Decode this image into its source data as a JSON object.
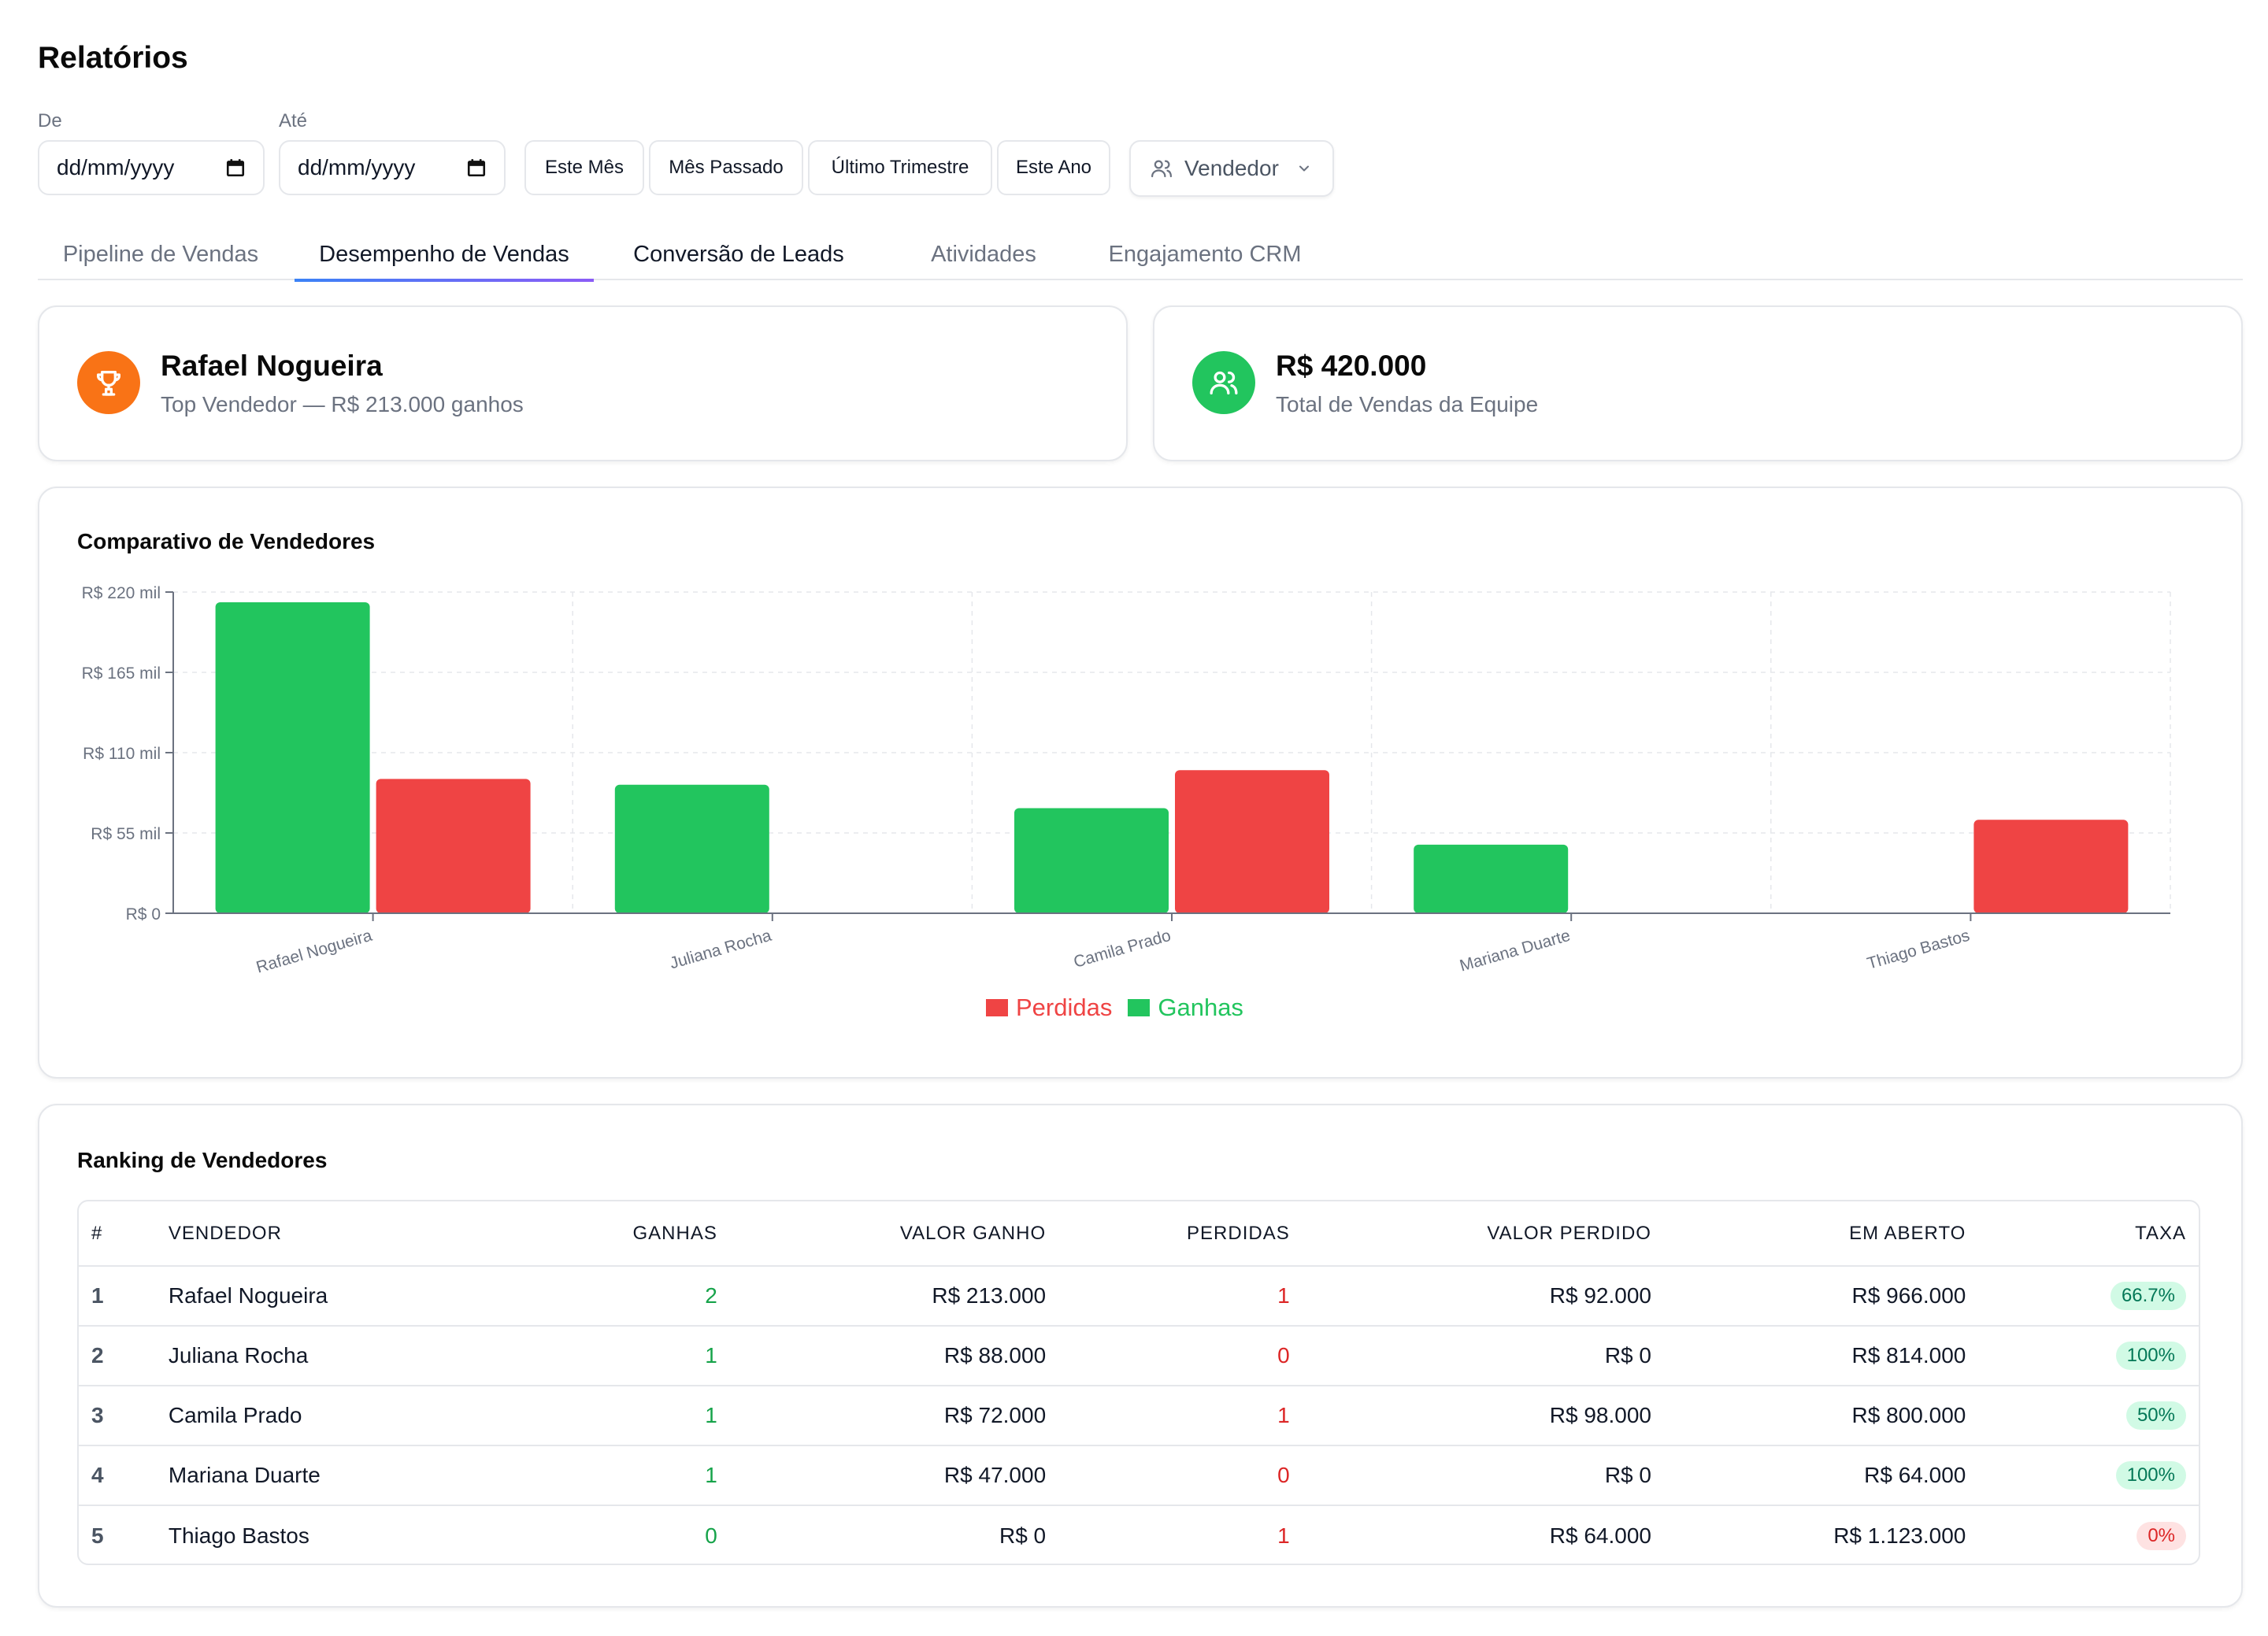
{
  "page": {
    "title": "Relatórios"
  },
  "filters": {
    "from_label": "De",
    "to_label": "Até",
    "from_placeholder": "dd/mm/yyyy",
    "to_placeholder": "dd/mm/yyyy",
    "presets": [
      "Este Mês",
      "Mês Passado",
      "Último Trimestre",
      "Este Ano"
    ],
    "seller_select": "Vendedor"
  },
  "tabs": [
    {
      "label": "Pipeline de Vendas"
    },
    {
      "label": "Desempenho de Vendas"
    },
    {
      "label": "Conversão de Leads"
    },
    {
      "label": "Atividades"
    },
    {
      "label": "Engajamento CRM"
    }
  ],
  "active_tab": "Desempenho de Vendas",
  "top_seller": {
    "name": "Rafael Nogueira",
    "subtitle": "Top Vendedor — R$ 213.000 ganhos",
    "icon": "trophy-icon",
    "color": "#f97316"
  },
  "team_total": {
    "value": "R$ 420.000",
    "subtitle": "Total de Vendas da Equipe",
    "icon": "users-icon",
    "color": "#22c55e"
  },
  "chart_section": {
    "title": "Comparativo de Vendedores"
  },
  "chart_data": {
    "type": "bar",
    "categories": [
      "Rafael Nogueira",
      "Juliana Rocha",
      "Camila Prado",
      "Mariana Duarte",
      "Thiago Bastos"
    ],
    "series": [
      {
        "name": "Ganhas",
        "values": [
          213000,
          88000,
          72000,
          47000,
          0
        ],
        "color": "#22c55e"
      },
      {
        "name": "Perdidas",
        "values": [
          92000,
          0,
          98000,
          0,
          64000
        ],
        "color": "#ef4444"
      }
    ],
    "y_ticks": [
      "R$ 0",
      "R$ 55 mil",
      "R$ 110 mil",
      "R$ 165 mil",
      "R$ 220 mil"
    ],
    "ylim": [
      0,
      220000
    ],
    "legend": [
      "Perdidas",
      "Ganhas"
    ],
    "legend_position": "bottom-center",
    "grid": true
  },
  "ranking": {
    "title": "Ranking de Vendedores",
    "columns": [
      "#",
      "VENDEDOR",
      "GANHAS",
      "VALOR GANHO",
      "PERDIDAS",
      "VALOR PERDIDO",
      "EM ABERTO",
      "TAXA"
    ],
    "rows": [
      {
        "rank": "1",
        "name": "Rafael Nogueira",
        "won": "2",
        "won_value": "R$ 213.000",
        "lost": "1",
        "lost_value": "R$ 92.000",
        "open": "R$ 966.000",
        "rate": "66.7%",
        "rate_status": "good"
      },
      {
        "rank": "2",
        "name": "Juliana Rocha",
        "won": "1",
        "won_value": "R$ 88.000",
        "lost": "0",
        "lost_value": "R$ 0",
        "open": "R$ 814.000",
        "rate": "100%",
        "rate_status": "good"
      },
      {
        "rank": "3",
        "name": "Camila Prado",
        "won": "1",
        "won_value": "R$ 72.000",
        "lost": "1",
        "lost_value": "R$ 98.000",
        "open": "R$ 800.000",
        "rate": "50%",
        "rate_status": "good"
      },
      {
        "rank": "4",
        "name": "Mariana Duarte",
        "won": "1",
        "won_value": "R$ 47.000",
        "lost": "0",
        "lost_value": "R$ 0",
        "open": "R$ 64.000",
        "rate": "100%",
        "rate_status": "good"
      },
      {
        "rank": "5",
        "name": "Thiago Bastos",
        "won": "0",
        "won_value": "R$ 0",
        "lost": "1",
        "lost_value": "R$ 64.000",
        "open": "R$ 1.123.000",
        "rate": "0%",
        "rate_status": "bad"
      }
    ]
  }
}
